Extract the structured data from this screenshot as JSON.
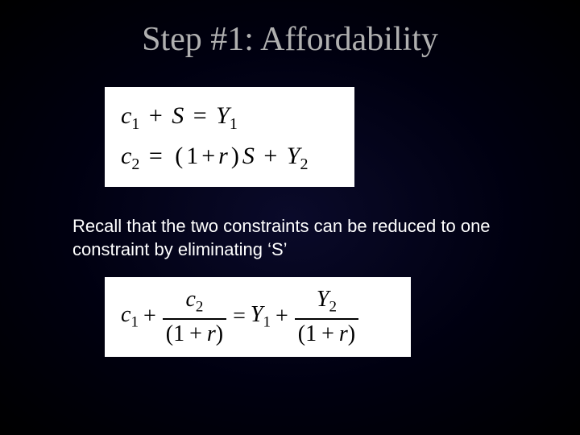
{
  "slide": {
    "title": "Step #1: Affordability",
    "background_gradient": {
      "center": "#0a0a2a",
      "mid": "#000010",
      "edge": "#000000"
    },
    "title_color": "#b0b0b0",
    "title_fontsize": 42,
    "body_text": "Recall that the two constraints can be reduced to one constraint by eliminating ‘S’",
    "body_color": "#ffffff",
    "body_fontsize": 22,
    "equation_box_bg": "#ffffff",
    "equation_color": "#000000",
    "equation_fontsize": 30,
    "equations_1": {
      "line1": {
        "lhs": "c₁ + S",
        "rhs": "Y₁"
      },
      "line2": {
        "lhs": "c₂",
        "rhs": "(1 + r)S + Y₂"
      },
      "c": "c",
      "S": "S",
      "Y": "Y",
      "r": "r",
      "sub1": "1",
      "sub2": "2",
      "plus": "+",
      "eq": "=",
      "lp": "(",
      "rp": ")",
      "one": "1"
    },
    "equations_2": {
      "lhs_term1": "c₁",
      "lhs_frac_num": "c₂",
      "lhs_frac_den": "(1 + r)",
      "rhs_term1": "Y₁",
      "rhs_frac_num": "Y₂",
      "rhs_frac_den": "(1 + r)",
      "c": "c",
      "Y": "Y",
      "r": "r",
      "sub1": "1",
      "sub2": "2",
      "plus": "+",
      "eq": "=",
      "lp": "(",
      "rp": ")",
      "one": "1"
    }
  }
}
